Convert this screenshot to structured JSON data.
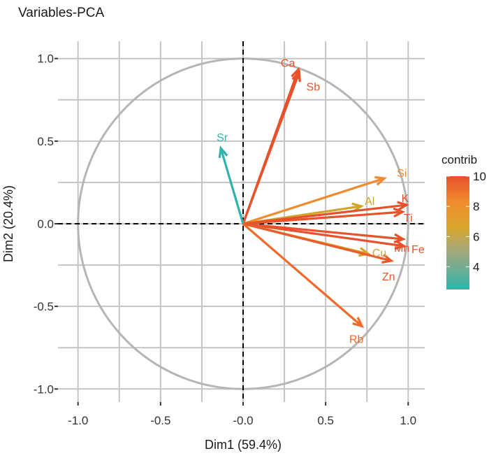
{
  "chart_data": {
    "type": "scatter",
    "subtype": "pca-variable-correlation-circle",
    "title": "Variables-PCA",
    "xlabel": "Dim1 (59.4%)",
    "ylabel": "Dim2 (20.4%)",
    "xlim": [
      -1.1,
      1.1
    ],
    "ylim": [
      -1.1,
      1.1
    ],
    "x_ticks": [
      -1.0,
      -0.5,
      0.0,
      0.5,
      1.0
    ],
    "x_tick_labels": [
      "-1.0",
      "-0.5",
      "-0.0",
      "0.5",
      "1.0"
    ],
    "y_ticks": [
      1.0,
      0.5,
      0.0,
      -0.5,
      -1.0
    ],
    "y_tick_labels": [
      "1.0",
      "0.5",
      "0.0",
      "-0.5",
      "-1.0"
    ],
    "grid": true,
    "unit_circle": true,
    "reference_lines": [
      "x=0 dashed",
      "y=0 dashed"
    ],
    "legend": {
      "title": "contrib",
      "placement": "right",
      "ticks": [
        10,
        8,
        6,
        4
      ],
      "range": [
        2.5,
        10
      ],
      "colors": [
        "#2fb3ad",
        "#d4a62a",
        "#ee6a2a",
        "#e8502b"
      ]
    },
    "variables": [
      {
        "name": "Ca",
        "x": 0.335,
        "y": 0.934,
        "contrib": 10.0,
        "color": "#e8502b"
      },
      {
        "name": "Sb",
        "x": 0.34,
        "y": 0.917,
        "contrib": 9.9,
        "color": "#e8522b"
      },
      {
        "name": "Sr",
        "x": -0.135,
        "y": 0.457,
        "contrib": 2.5,
        "color": "#2fb3ad"
      },
      {
        "name": "Si",
        "x": 0.856,
        "y": 0.275,
        "contrib": 8.0,
        "color": "#f08a2e"
      },
      {
        "name": "Al",
        "x": 0.716,
        "y": 0.106,
        "contrib": 6.2,
        "color": "#d2a42c"
      },
      {
        "name": "K",
        "x": 0.99,
        "y": 0.114,
        "contrib": 10.0,
        "color": "#e8502b"
      },
      {
        "name": "Ti",
        "x": 0.966,
        "y": 0.072,
        "contrib": 9.8,
        "color": "#e9532b"
      },
      {
        "name": "Mn",
        "x": 0.97,
        "y": -0.093,
        "contrib": 9.8,
        "color": "#e9532b"
      },
      {
        "name": "Fe",
        "x": 0.975,
        "y": -0.135,
        "contrib": 9.9,
        "color": "#e8512b"
      },
      {
        "name": "Cu",
        "x": 0.758,
        "y": -0.182,
        "contrib": 6.5,
        "color": "#d6a22a"
      },
      {
        "name": "Zn",
        "x": 0.898,
        "y": -0.224,
        "contrib": 9.3,
        "color": "#ea5b2b"
      },
      {
        "name": "Rb",
        "x": 0.72,
        "y": -0.62,
        "contrib": 8.6,
        "color": "#ee6a2a"
      }
    ]
  }
}
